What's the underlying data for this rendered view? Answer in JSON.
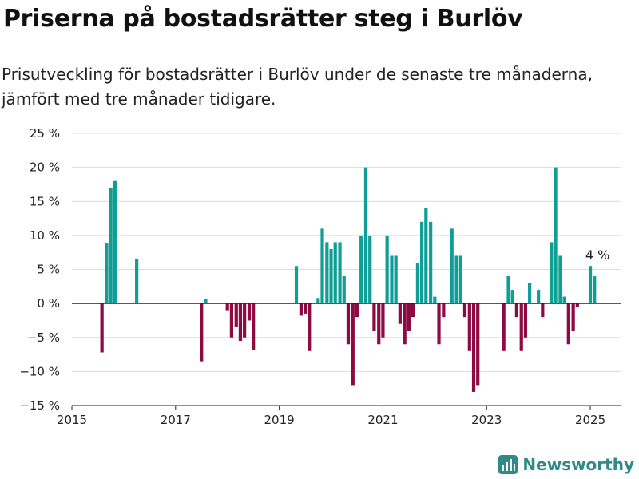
{
  "header": {
    "title": "Priserna på bostadsrätter steg i Burlöv",
    "subtitle": "Prisutveckling för bostadsrätter i Burlöv under de senaste tre månaderna, jämfört med tre månader tidigare."
  },
  "brand": {
    "name": "Newsworthy",
    "color": "#2e8b88"
  },
  "colors": {
    "positive": "#0f9e96",
    "negative": "#8e0a42"
  },
  "chart_data": {
    "type": "bar",
    "x_range": [
      2015.0,
      2025.6
    ],
    "ylim": [
      -15,
      25
    ],
    "y_ticks": [
      -15,
      -10,
      -5,
      0,
      5,
      10,
      15,
      20,
      25
    ],
    "y_tick_labels": [
      "−15 %",
      "−10 %",
      "−5 %",
      "0 %",
      "5 %",
      "10 %",
      "15 %",
      "20 %",
      "25 %"
    ],
    "x_ticks": [
      2015,
      2017,
      2019,
      2021,
      2023,
      2025
    ],
    "x_tick_labels": [
      "2015",
      "2017",
      "2019",
      "2021",
      "2023",
      "2025"
    ],
    "grid": true,
    "annotation": {
      "text": "4 %",
      "x": 2025.17,
      "y": 4
    },
    "x": [
      2015.58,
      2015.67,
      2015.75,
      2015.83,
      2016.25,
      2017.5,
      2017.58,
      2018.0,
      2018.08,
      2018.17,
      2018.25,
      2018.33,
      2018.42,
      2018.5,
      2019.33,
      2019.42,
      2019.5,
      2019.58,
      2019.75,
      2019.83,
      2019.92,
      2020.0,
      2020.08,
      2020.17,
      2020.25,
      2020.33,
      2020.42,
      2020.5,
      2020.58,
      2020.67,
      2020.75,
      2020.83,
      2020.92,
      2021.0,
      2021.08,
      2021.17,
      2021.25,
      2021.33,
      2021.42,
      2021.5,
      2021.58,
      2021.67,
      2021.75,
      2021.83,
      2021.92,
      2022.0,
      2022.08,
      2022.17,
      2022.33,
      2022.42,
      2022.5,
      2022.58,
      2022.67,
      2022.75,
      2022.83,
      2023.33,
      2023.42,
      2023.5,
      2023.58,
      2023.67,
      2023.75,
      2023.83,
      2024.0,
      2024.08,
      2024.25,
      2024.33,
      2024.42,
      2024.5,
      2024.58,
      2024.67,
      2024.75,
      2025.0,
      2025.08
    ],
    "values": [
      -7.2,
      8.8,
      17,
      18,
      6.5,
      -8.5,
      0.7,
      -1,
      -5,
      -3.5,
      -5.5,
      -5,
      -2.5,
      -6.8,
      5.5,
      -1.8,
      -1.5,
      -7,
      0.8,
      11,
      9,
      8,
      9,
      9,
      4,
      -6,
      -12,
      -2,
      10,
      20,
      10,
      -4,
      -6,
      -5,
      10,
      7,
      7,
      -3,
      -6,
      -4,
      -2,
      6,
      12,
      14,
      12,
      1,
      -6,
      -2,
      11,
      7,
      7,
      -2,
      -7,
      -13,
      -12,
      -7,
      4,
      2,
      -2,
      -7,
      -5,
      3,
      2,
      -2,
      9,
      20,
      7,
      1,
      -6,
      -4,
      -0.5,
      5.5,
      4
    ]
  }
}
